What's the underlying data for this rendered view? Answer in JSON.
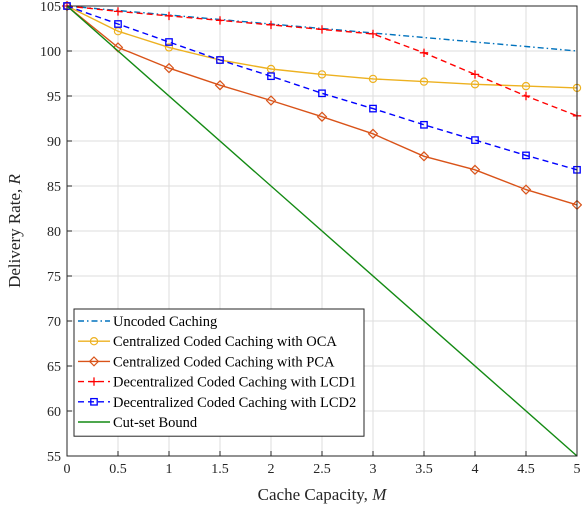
{
  "chart_data": {
    "type": "line",
    "xlabel": "Cache Capacity, ",
    "xlabel_var": "M",
    "ylabel": "Delivery Rate, ",
    "ylabel_var": "R",
    "xlim": [
      0,
      5
    ],
    "ylim": [
      55,
      105
    ],
    "xticks": [
      0,
      0.5,
      1,
      1.5,
      2,
      2.5,
      3,
      3.5,
      4,
      4.5,
      5
    ],
    "yticks": [
      55,
      60,
      65,
      70,
      75,
      80,
      85,
      90,
      95,
      100,
      105
    ],
    "grid": true,
    "legend_position": "bottom-left",
    "series": [
      {
        "name": "Uncoded Caching",
        "color": "#0072BD",
        "dash": "dashdot",
        "marker": "none",
        "x": [
          0,
          0.5,
          1,
          1.5,
          2,
          2.5,
          3,
          3.5,
          4,
          4.5,
          5
        ],
        "y": [
          105,
          104.5,
          104,
          103.5,
          103,
          102.5,
          102,
          101.5,
          101,
          100.5,
          100
        ]
      },
      {
        "name": "Centralized Coded Caching with OCA",
        "color": "#EDB120",
        "dash": "solid",
        "marker": "circle",
        "x": [
          0,
          0.5,
          1,
          1.5,
          2,
          2.5,
          3,
          3.5,
          4,
          4.5,
          5
        ],
        "y": [
          105,
          102.2,
          100.4,
          99.0,
          98.0,
          97.4,
          96.9,
          96.6,
          96.3,
          96.1,
          95.9
        ]
      },
      {
        "name": "Centralized Coded Caching with PCA",
        "color": "#D95319",
        "dash": "solid",
        "marker": "diamond",
        "x": [
          0,
          0.5,
          1,
          1.5,
          2,
          2.5,
          3,
          3.5,
          4,
          4.5,
          5
        ],
        "y": [
          105,
          100.4,
          98.1,
          96.2,
          94.5,
          92.7,
          90.8,
          88.3,
          86.8,
          84.6,
          82.9
        ]
      },
      {
        "name": "Decentralized Coded Caching with LCD1",
        "color": "#FF0000",
        "dash": "dashed",
        "marker": "plus",
        "x": [
          0,
          0.5,
          1,
          1.5,
          2,
          2.5,
          3,
          3.5,
          4,
          4.5,
          5
        ],
        "y": [
          105,
          104.4,
          103.9,
          103.4,
          102.9,
          102.4,
          101.9,
          99.8,
          97.4,
          95.0,
          92.8
        ]
      },
      {
        "name": "Decentralized Coded Caching with LCD2",
        "color": "#0000FF",
        "dash": "dashed",
        "marker": "square",
        "x": [
          0,
          0.5,
          1,
          1.5,
          2,
          2.5,
          3,
          3.5,
          4,
          4.5,
          5
        ],
        "y": [
          105,
          103.0,
          101.0,
          99.0,
          97.2,
          95.3,
          93.6,
          91.8,
          90.1,
          88.4,
          86.8
        ]
      },
      {
        "name": "Cut-set Bound",
        "color": "#138A13",
        "dash": "solid",
        "marker": "none",
        "x": [
          0,
          5
        ],
        "y": [
          105,
          55
        ]
      }
    ]
  }
}
